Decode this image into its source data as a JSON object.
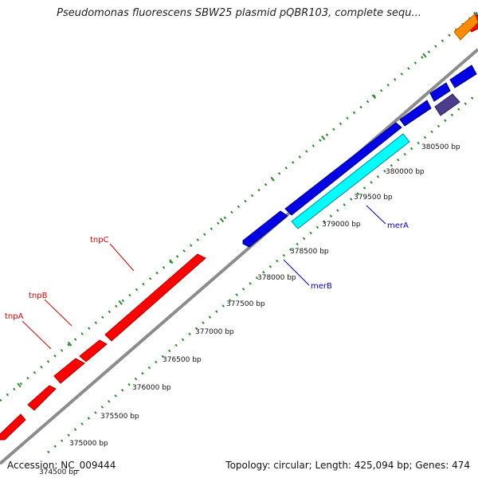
{
  "title": "Pseudomonas fluorescens SBW25 plasmid pQBR103, complete sequ...",
  "footer": {
    "accession": "Accession: NC_009444",
    "summary": "Topology: circular; Length: 425,094 bp; Genes: 474"
  },
  "colors": {
    "backbone": "#8c8c8c",
    "tick_dots": "#2e8b2e",
    "forward_gene": "#ff0000",
    "reverse_gene": "#0000e6",
    "merA_gene": "#00ffff",
    "dark_gene": "#4b3c8c",
    "orange_gene": "#ff8c00",
    "label_red": "#e00000",
    "label_blue": "#0000cc"
  },
  "ticks": [
    {
      "label": "374500 bp"
    },
    {
      "label": "375000 bp"
    },
    {
      "label": "375500 bp"
    },
    {
      "label": "376000 bp"
    },
    {
      "label": "376500 bp"
    },
    {
      "label": "377000 bp"
    },
    {
      "label": "377500 bp"
    },
    {
      "label": "378000 bp"
    },
    {
      "label": "378500 bp"
    },
    {
      "label": "379000 bp"
    },
    {
      "label": "379500 bp"
    },
    {
      "label": "380000 bp"
    },
    {
      "label": "380500 bp"
    }
  ],
  "gene_labels": [
    {
      "name": "tnpC",
      "strand": "forward"
    },
    {
      "name": "tnpB",
      "strand": "forward"
    },
    {
      "name": "tnpA",
      "strand": "forward"
    },
    {
      "name": "merA",
      "strand": "reverse"
    },
    {
      "name": "merB",
      "strand": "reverse"
    }
  ]
}
